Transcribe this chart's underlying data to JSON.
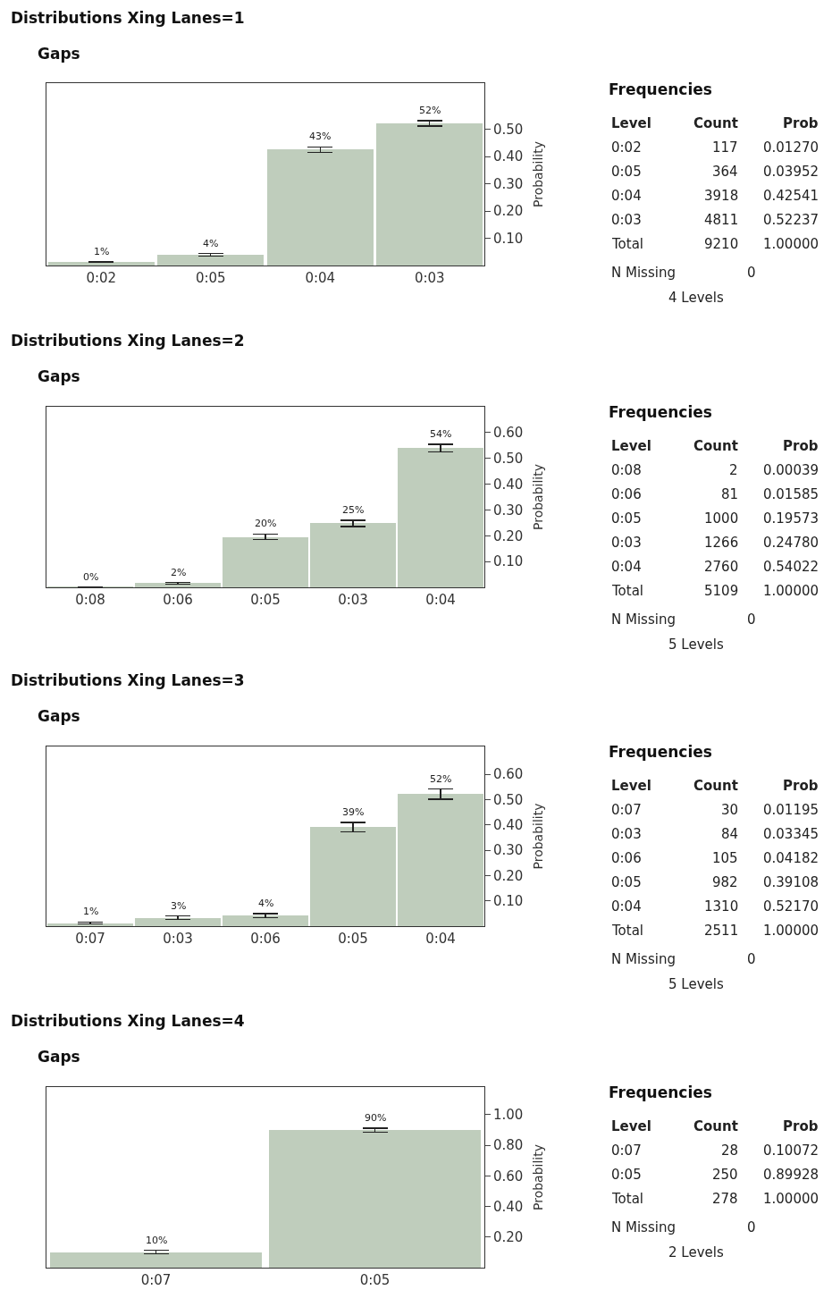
{
  "chart_data": [
    {
      "type": "bar",
      "title": "Distributions Xing Lanes=1",
      "subtitle": "Gaps",
      "ylabel": "Probability",
      "color": "#bfcdbc",
      "categories": [
        "0:02",
        "0:05",
        "0:04",
        "0:03"
      ],
      "values": [
        0.0127,
        0.03952,
        0.42541,
        0.52237
      ],
      "errors": [
        0.002,
        0.004,
        0.01,
        0.01
      ],
      "value_labels": [
        "1%",
        "4%",
        "43%",
        "52%"
      ],
      "ylim": [
        0,
        0.67
      ],
      "yticks": [
        {
          "value": 0.1,
          "label": "0.10"
        },
        {
          "value": 0.2,
          "label": "0.20"
        },
        {
          "value": 0.3,
          "label": "0.30"
        },
        {
          "value": 0.4,
          "label": "0.40"
        },
        {
          "value": 0.5,
          "label": "0.50"
        }
      ]
    },
    {
      "type": "other",
      "title": "Frequencies",
      "annotations": [
        "Level",
        "Count",
        "Prob",
        "0:02",
        "117",
        "0.01270",
        "0:05",
        "364",
        "0.03952",
        "0:04",
        "3918",
        "0.42541",
        "0:03",
        "4811",
        "0.52237",
        "Total",
        "9210",
        "1.00000",
        "N Missing",
        "0",
        "4 Levels"
      ]
    },
    {
      "type": "bar",
      "title": "Distributions Xing Lanes=2",
      "subtitle": "Gaps",
      "ylabel": "Probability",
      "color": "#bfcdbc",
      "categories": [
        "0:08",
        "0:06",
        "0:05",
        "0:03",
        "0:04"
      ],
      "values": [
        0.00039,
        0.01585,
        0.19573,
        0.2478,
        0.54022
      ],
      "errors": [
        0.0005,
        0.003,
        0.011,
        0.012,
        0.014
      ],
      "value_labels": [
        "0%",
        "2%",
        "20%",
        "25%",
        "54%"
      ],
      "ylim": [
        0,
        0.7
      ],
      "yticks": [
        {
          "value": 0.1,
          "label": "0.10"
        },
        {
          "value": 0.2,
          "label": "0.20"
        },
        {
          "value": 0.3,
          "label": "0.30"
        },
        {
          "value": 0.4,
          "label": "0.40"
        },
        {
          "value": 0.5,
          "label": "0.50"
        },
        {
          "value": 0.6,
          "label": "0.60"
        }
      ]
    },
    {
      "type": "other",
      "title": "Frequencies",
      "annotations": [
        "Level",
        "Count",
        "Prob",
        "0:08",
        "2",
        "0.00039",
        "0:06",
        "81",
        "0.01585",
        "0:05",
        "1000",
        "0.19573",
        "0:03",
        "1266",
        "0.24780",
        "0:04",
        "2760",
        "0.54022",
        "Total",
        "5109",
        "1.00000",
        "N Missing",
        "0",
        "5 Levels"
      ]
    },
    {
      "type": "bar",
      "title": "Distributions Xing Lanes=3",
      "subtitle": "Gaps",
      "ylabel": "Probability",
      "color": "#bfcdbc",
      "categories": [
        "0:07",
        "0:03",
        "0:06",
        "0:05",
        "0:04"
      ],
      "values": [
        0.01195,
        0.03345,
        0.04182,
        0.39108,
        0.5217
      ],
      "errors": [
        0.004,
        0.007,
        0.008,
        0.019,
        0.02
      ],
      "value_labels": [
        "1%",
        "3%",
        "4%",
        "39%",
        "52%"
      ],
      "ylim": [
        0,
        0.71
      ],
      "yticks": [
        {
          "value": 0.1,
          "label": "0.10"
        },
        {
          "value": 0.2,
          "label": "0.20"
        },
        {
          "value": 0.3,
          "label": "0.30"
        },
        {
          "value": 0.4,
          "label": "0.40"
        },
        {
          "value": 0.5,
          "label": "0.50"
        },
        {
          "value": 0.6,
          "label": "0.60"
        }
      ]
    },
    {
      "type": "other",
      "title": "Frequencies",
      "annotations": [
        "Level",
        "Count",
        "Prob",
        "0:07",
        "30",
        "0.01195",
        "0:03",
        "84",
        "0.03345",
        "0:06",
        "105",
        "0.04182",
        "0:05",
        "982",
        "0.39108",
        "0:04",
        "1310",
        "0.52170",
        "Total",
        "2511",
        "1.00000",
        "N Missing",
        "0",
        "5 Levels"
      ]
    },
    {
      "type": "bar",
      "title": "Distributions Xing Lanes=4",
      "subtitle": "Gaps",
      "ylabel": "Probability",
      "color": "#bfcdbc",
      "categories": [
        "0:07",
        "0:05"
      ],
      "values": [
        0.10072,
        0.89928
      ],
      "errors": [
        0.012,
        0.012
      ],
      "value_labels": [
        "10%",
        "90%"
      ],
      "ylim": [
        0,
        1.18
      ],
      "yticks": [
        {
          "value": 0.2,
          "label": "0.20"
        },
        {
          "value": 0.4,
          "label": "0.40"
        },
        {
          "value": 0.6,
          "label": "0.60"
        },
        {
          "value": 0.8,
          "label": "0.80"
        },
        {
          "value": 1.0,
          "label": "1.00"
        }
      ]
    },
    {
      "type": "other",
      "title": "Frequencies",
      "annotations": [
        "Level",
        "Count",
        "Prob",
        "0:07",
        "28",
        "0.10072",
        "0:05",
        "250",
        "0.89928",
        "Total",
        "278",
        "1.00000",
        "N Missing",
        "0",
        "2 Levels"
      ]
    }
  ]
}
